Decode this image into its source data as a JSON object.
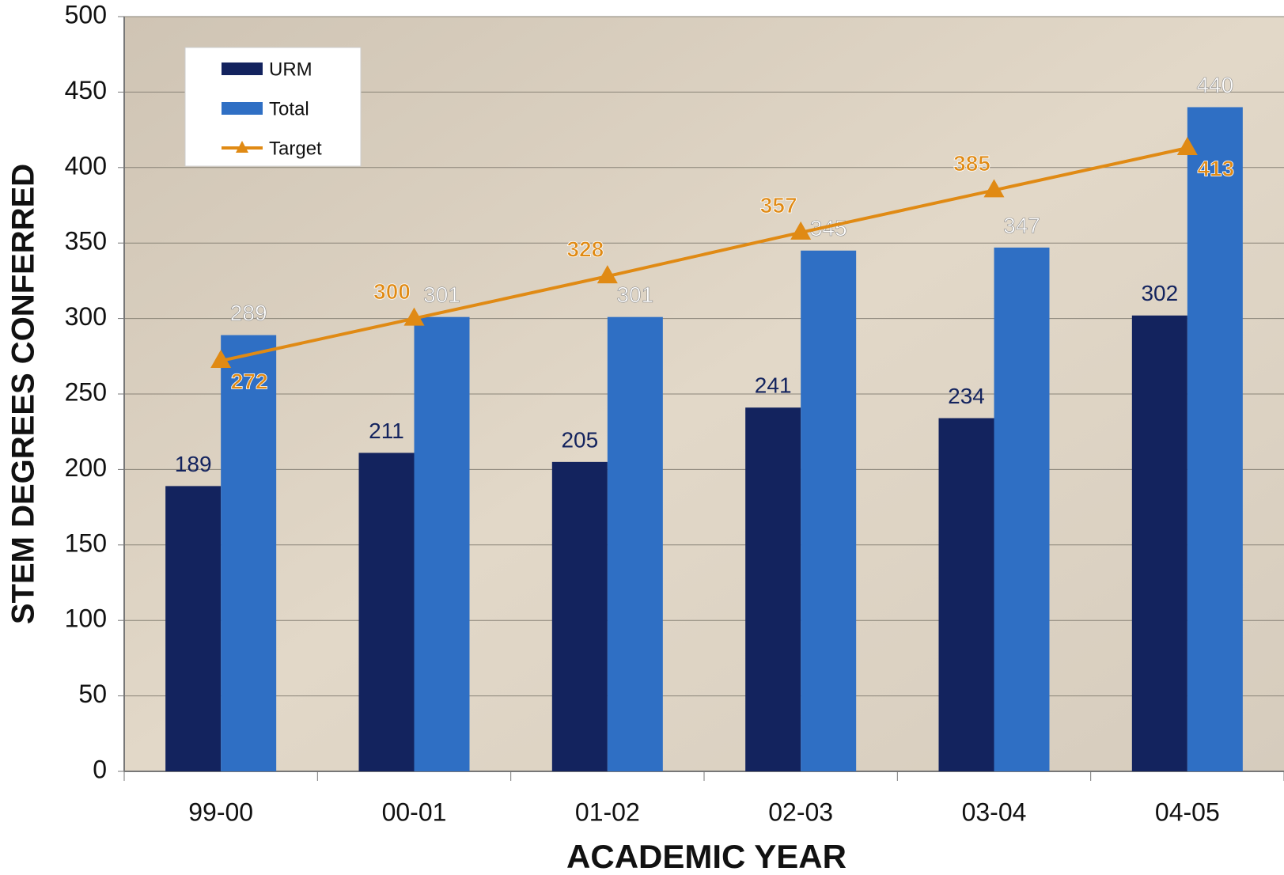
{
  "chart_data": {
    "type": "bar",
    "xlabel": "ACADEMIC YEAR",
    "ylabel": "STEM DEGREES CONFERRED",
    "categories": [
      "99-00",
      "00-01",
      "01-02",
      "02-03",
      "03-04",
      "04-05"
    ],
    "series": [
      {
        "name": "URM",
        "color": "#13235e",
        "values": [
          189,
          211,
          205,
          241,
          234,
          302
        ]
      },
      {
        "name": "Total",
        "color": "#2f6fc4",
        "values": [
          289,
          301,
          301,
          345,
          347,
          440
        ]
      },
      {
        "name": "Target",
        "type": "line",
        "color": "#e08a14",
        "values": [
          272,
          300,
          328,
          357,
          385,
          413
        ]
      }
    ],
    "ylim": [
      0,
      500
    ],
    "yticks": [
      0,
      50,
      100,
      150,
      200,
      250,
      300,
      350,
      400,
      450,
      500
    ],
    "grid": true,
    "legend": "top-left"
  }
}
